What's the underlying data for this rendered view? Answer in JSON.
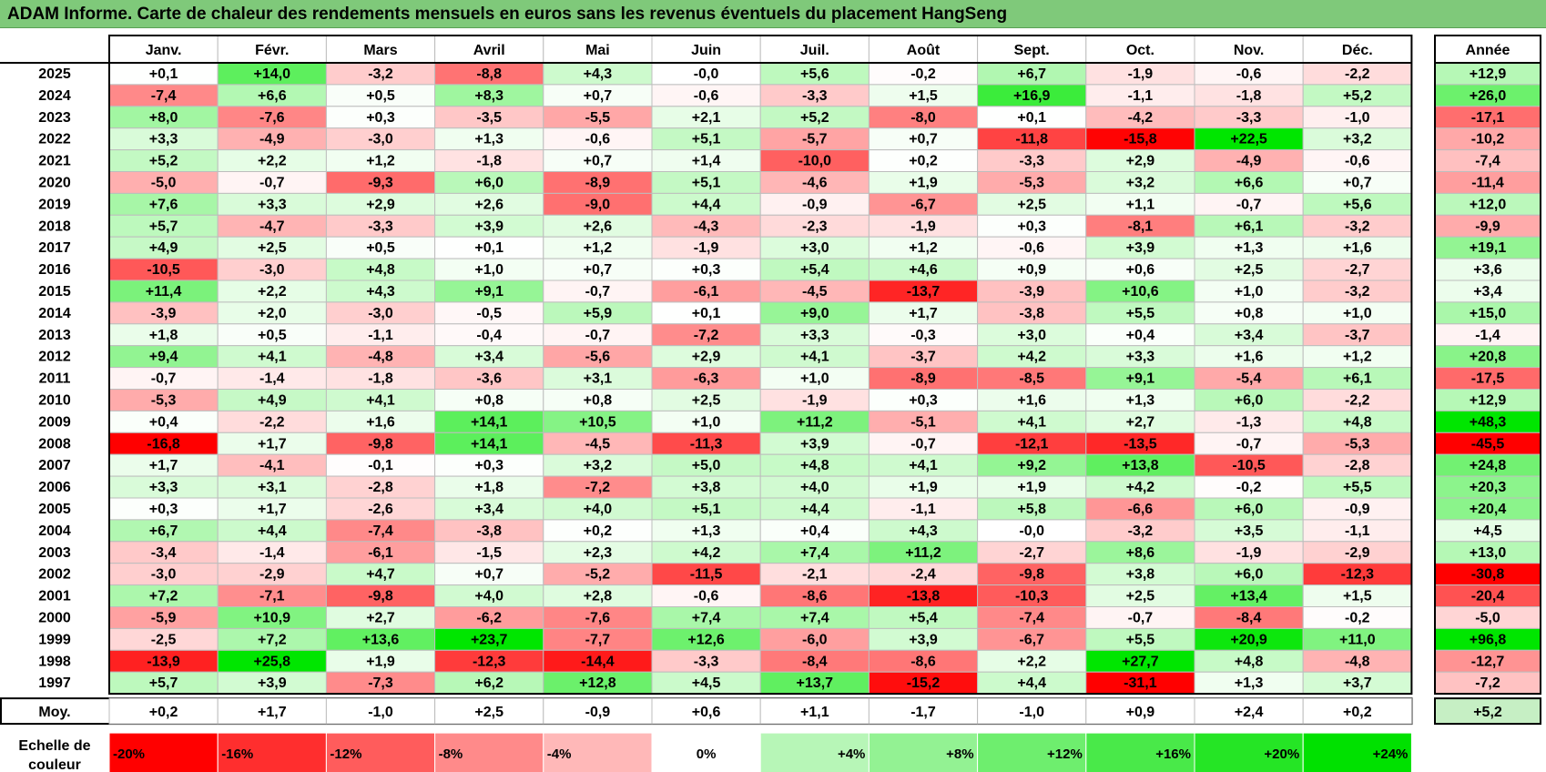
{
  "title": "ADAM Informe. Carte de chaleur des rendements mensuels en euros sans les revenus éventuels du placement HangSeng",
  "chart_data": {
    "type": "heatmap",
    "title": "ADAM Informe. Carte de chaleur des rendements mensuels en euros sans les revenus éventuels du placement HangSeng",
    "months": [
      "Janv.",
      "Févr.",
      "Mars",
      "Avril",
      "Mai",
      "Juin",
      "Juil.",
      "Août",
      "Sept.",
      "Oct.",
      "Nov.",
      "Déc."
    ],
    "year_header": "Année",
    "avg_label": "Moy.",
    "rows": [
      {
        "year": "2025",
        "values": [
          "+0,1",
          "+14,0",
          "-3,2",
          "-8,8",
          "+4,3",
          "-0,0",
          "+5,6",
          "-0,2",
          "+6,7",
          "-1,9",
          "-0,6",
          "-2,2"
        ],
        "annual": "+12,9"
      },
      {
        "year": "2024",
        "values": [
          "-7,4",
          "+6,6",
          "+0,5",
          "+8,3",
          "+0,7",
          "-0,6",
          "-3,3",
          "+1,5",
          "+16,9",
          "-1,1",
          "-1,8",
          "+5,2"
        ],
        "annual": "+26,0"
      },
      {
        "year": "2023",
        "values": [
          "+8,0",
          "-7,6",
          "+0,3",
          "-3,5",
          "-5,5",
          "+2,1",
          "+5,2",
          "-8,0",
          "+0,1",
          "-4,2",
          "-3,3",
          "-1,0"
        ],
        "annual": "-17,1"
      },
      {
        "year": "2022",
        "values": [
          "+3,3",
          "-4,9",
          "-3,0",
          "+1,3",
          "-0,6",
          "+5,1",
          "-5,7",
          "+0,7",
          "-11,8",
          "-15,8",
          "+22,5",
          "+3,2"
        ],
        "annual": "-10,2"
      },
      {
        "year": "2021",
        "values": [
          "+5,2",
          "+2,2",
          "+1,2",
          "-1,8",
          "+0,7",
          "+1,4",
          "-10,0",
          "+0,2",
          "-3,3",
          "+2,9",
          "-4,9",
          "-0,6"
        ],
        "annual": "-7,4"
      },
      {
        "year": "2020",
        "values": [
          "-5,0",
          "-0,7",
          "-9,3",
          "+6,0",
          "-8,9",
          "+5,1",
          "-4,6",
          "+1,9",
          "-5,3",
          "+3,2",
          "+6,6",
          "+0,7"
        ],
        "annual": "-11,4"
      },
      {
        "year": "2019",
        "values": [
          "+7,6",
          "+3,3",
          "+2,9",
          "+2,6",
          "-9,0",
          "+4,4",
          "-0,9",
          "-6,7",
          "+2,5",
          "+1,1",
          "-0,7",
          "+5,6"
        ],
        "annual": "+12,0"
      },
      {
        "year": "2018",
        "values": [
          "+5,7",
          "-4,7",
          "-3,3",
          "+3,9",
          "+2,6",
          "-4,3",
          "-2,3",
          "-1,9",
          "+0,3",
          "-8,1",
          "+6,1",
          "-3,2"
        ],
        "annual": "-9,9"
      },
      {
        "year": "2017",
        "values": [
          "+4,9",
          "+2,5",
          "+0,5",
          "+0,1",
          "+1,2",
          "-1,9",
          "+3,0",
          "+1,2",
          "-0,6",
          "+3,9",
          "+1,3",
          "+1,6"
        ],
        "annual": "+19,1"
      },
      {
        "year": "2016",
        "values": [
          "-10,5",
          "-3,0",
          "+4,8",
          "+1,0",
          "+0,7",
          "+0,3",
          "+5,4",
          "+4,6",
          "+0,9",
          "+0,6",
          "+2,5",
          "-2,7"
        ],
        "annual": "+3,6"
      },
      {
        "year": "2015",
        "values": [
          "+11,4",
          "+2,2",
          "+4,3",
          "+9,1",
          "-0,7",
          "-6,1",
          "-4,5",
          "-13,7",
          "-3,9",
          "+10,6",
          "+1,0",
          "-3,2"
        ],
        "annual": "+3,4"
      },
      {
        "year": "2014",
        "values": [
          "-3,9",
          "+2,0",
          "-3,0",
          "-0,5",
          "+5,9",
          "+0,1",
          "+9,0",
          "+1,7",
          "-3,8",
          "+5,5",
          "+0,8",
          "+1,0"
        ],
        "annual": "+15,0"
      },
      {
        "year": "2013",
        "values": [
          "+1,8",
          "+0,5",
          "-1,1",
          "-0,4",
          "-0,7",
          "-7,2",
          "+3,3",
          "-0,3",
          "+3,0",
          "+0,4",
          "+3,4",
          "-3,7"
        ],
        "annual": "-1,4"
      },
      {
        "year": "2012",
        "values": [
          "+9,4",
          "+4,1",
          "-4,8",
          "+3,4",
          "-5,6",
          "+2,9",
          "+4,1",
          "-3,7",
          "+4,2",
          "+3,3",
          "+1,6",
          "+1,2"
        ],
        "annual": "+20,8"
      },
      {
        "year": "2011",
        "values": [
          "-0,7",
          "-1,4",
          "-1,8",
          "-3,6",
          "+3,1",
          "-6,3",
          "+1,0",
          "-8,9",
          "-8,5",
          "+9,1",
          "-5,4",
          "+6,1"
        ],
        "annual": "-17,5"
      },
      {
        "year": "2010",
        "values": [
          "-5,3",
          "+4,9",
          "+4,1",
          "+0,8",
          "+0,8",
          "+2,5",
          "-1,9",
          "+0,3",
          "+1,6",
          "+1,3",
          "+6,0",
          "-2,2"
        ],
        "annual": "+12,9"
      },
      {
        "year": "2009",
        "values": [
          "+0,4",
          "-2,2",
          "+1,6",
          "+14,1",
          "+10,5",
          "+1,0",
          "+11,2",
          "-5,1",
          "+4,1",
          "+2,7",
          "-1,3",
          "+4,8"
        ],
        "annual": "+48,3"
      },
      {
        "year": "2008",
        "values": [
          "-16,8",
          "+1,7",
          "-9,8",
          "+14,1",
          "-4,5",
          "-11,3",
          "+3,9",
          "-0,7",
          "-12,1",
          "-13,5",
          "-0,7",
          "-5,3"
        ],
        "annual": "-45,5"
      },
      {
        "year": "2007",
        "values": [
          "+1,7",
          "-4,1",
          "-0,1",
          "+0,3",
          "+3,2",
          "+5,0",
          "+4,8",
          "+4,1",
          "+9,2",
          "+13,8",
          "-10,5",
          "-2,8"
        ],
        "annual": "+24,8"
      },
      {
        "year": "2006",
        "values": [
          "+3,3",
          "+3,1",
          "-2,8",
          "+1,8",
          "-7,2",
          "+3,8",
          "+4,0",
          "+1,9",
          "+1,9",
          "+4,2",
          "-0,2",
          "+5,5"
        ],
        "annual": "+20,3"
      },
      {
        "year": "2005",
        "values": [
          "+0,3",
          "+1,7",
          "-2,6",
          "+3,4",
          "+4,0",
          "+5,1",
          "+4,4",
          "-1,1",
          "+5,8",
          "-6,6",
          "+6,0",
          "-0,9"
        ],
        "annual": "+20,4"
      },
      {
        "year": "2004",
        "values": [
          "+6,7",
          "+4,4",
          "-7,4",
          "-3,8",
          "+0,2",
          "+1,3",
          "+0,4",
          "+4,3",
          "-0,0",
          "-3,2",
          "+3,5",
          "-1,1"
        ],
        "annual": "+4,5"
      },
      {
        "year": "2003",
        "values": [
          "-3,4",
          "-1,4",
          "-6,1",
          "-1,5",
          "+2,3",
          "+4,2",
          "+7,4",
          "+11,2",
          "-2,7",
          "+8,6",
          "-1,9",
          "-2,9"
        ],
        "annual": "+13,0"
      },
      {
        "year": "2002",
        "values": [
          "-3,0",
          "-2,9",
          "+4,7",
          "+0,7",
          "-5,2",
          "-11,5",
          "-2,1",
          "-2,4",
          "-9,8",
          "+3,8",
          "+6,0",
          "-12,3"
        ],
        "annual": "-30,8"
      },
      {
        "year": "2001",
        "values": [
          "+7,2",
          "-7,1",
          "-9,8",
          "+4,0",
          "+2,8",
          "-0,6",
          "-8,6",
          "-13,8",
          "-10,3",
          "+2,5",
          "+13,4",
          "+1,5"
        ],
        "annual": "-20,4"
      },
      {
        "year": "2000",
        "values": [
          "-5,9",
          "+10,9",
          "+2,7",
          "-6,2",
          "-7,6",
          "+7,4",
          "+7,4",
          "+5,4",
          "-7,4",
          "-0,7",
          "-8,4",
          "-0,2"
        ],
        "annual": "-5,0"
      },
      {
        "year": "1999",
        "values": [
          "-2,5",
          "+7,2",
          "+13,6",
          "+23,7",
          "-7,7",
          "+12,6",
          "-6,0",
          "+3,9",
          "-6,7",
          "+5,5",
          "+20,9",
          "+11,0"
        ],
        "annual": "+96,8"
      },
      {
        "year": "1998",
        "values": [
          "-13,9",
          "+25,8",
          "+1,9",
          "-12,3",
          "-14,4",
          "-3,3",
          "-8,4",
          "-8,6",
          "+2,2",
          "+27,7",
          "+4,8",
          "-4,8"
        ],
        "annual": "-12,7"
      },
      {
        "year": "1997",
        "values": [
          "+5,7",
          "+3,9",
          "-7,3",
          "+6,2",
          "+12,8",
          "+4,5",
          "+13,7",
          "-15,2",
          "+4,4",
          "-31,1",
          "+1,3",
          "+3,7"
        ],
        "annual": "-7,2"
      }
    ],
    "averages": [
      "+0,2",
      "+1,7",
      "-1,0",
      "+2,5",
      "-0,9",
      "+0,6",
      "+1,1",
      "-1,7",
      "-1,0",
      "+0,9",
      "+2,4",
      "+0,2"
    ],
    "average_annual": "+5,2",
    "scale_caption": [
      "Echelle de",
      "couleur"
    ],
    "scale": [
      {
        "label": "-20%",
        "value": -20
      },
      {
        "label": "-16%",
        "value": -16
      },
      {
        "label": "-12%",
        "value": -12
      },
      {
        "label": "-8%",
        "value": -8
      },
      {
        "label": "-4%",
        "value": -4
      },
      {
        "label": "0%",
        "value": 0
      },
      {
        "label": "+4%",
        "value": 4
      },
      {
        "label": "+8%",
        "value": 8
      },
      {
        "label": "+12%",
        "value": 12
      },
      {
        "label": "+16%",
        "value": 16
      },
      {
        "label": "+20%",
        "value": 20
      },
      {
        "label": "+24%",
        "value": 24
      }
    ],
    "colors": {
      "negative_max": "#ff0000",
      "neutral": "#ffffff",
      "positive_max": "#00e000"
    }
  }
}
